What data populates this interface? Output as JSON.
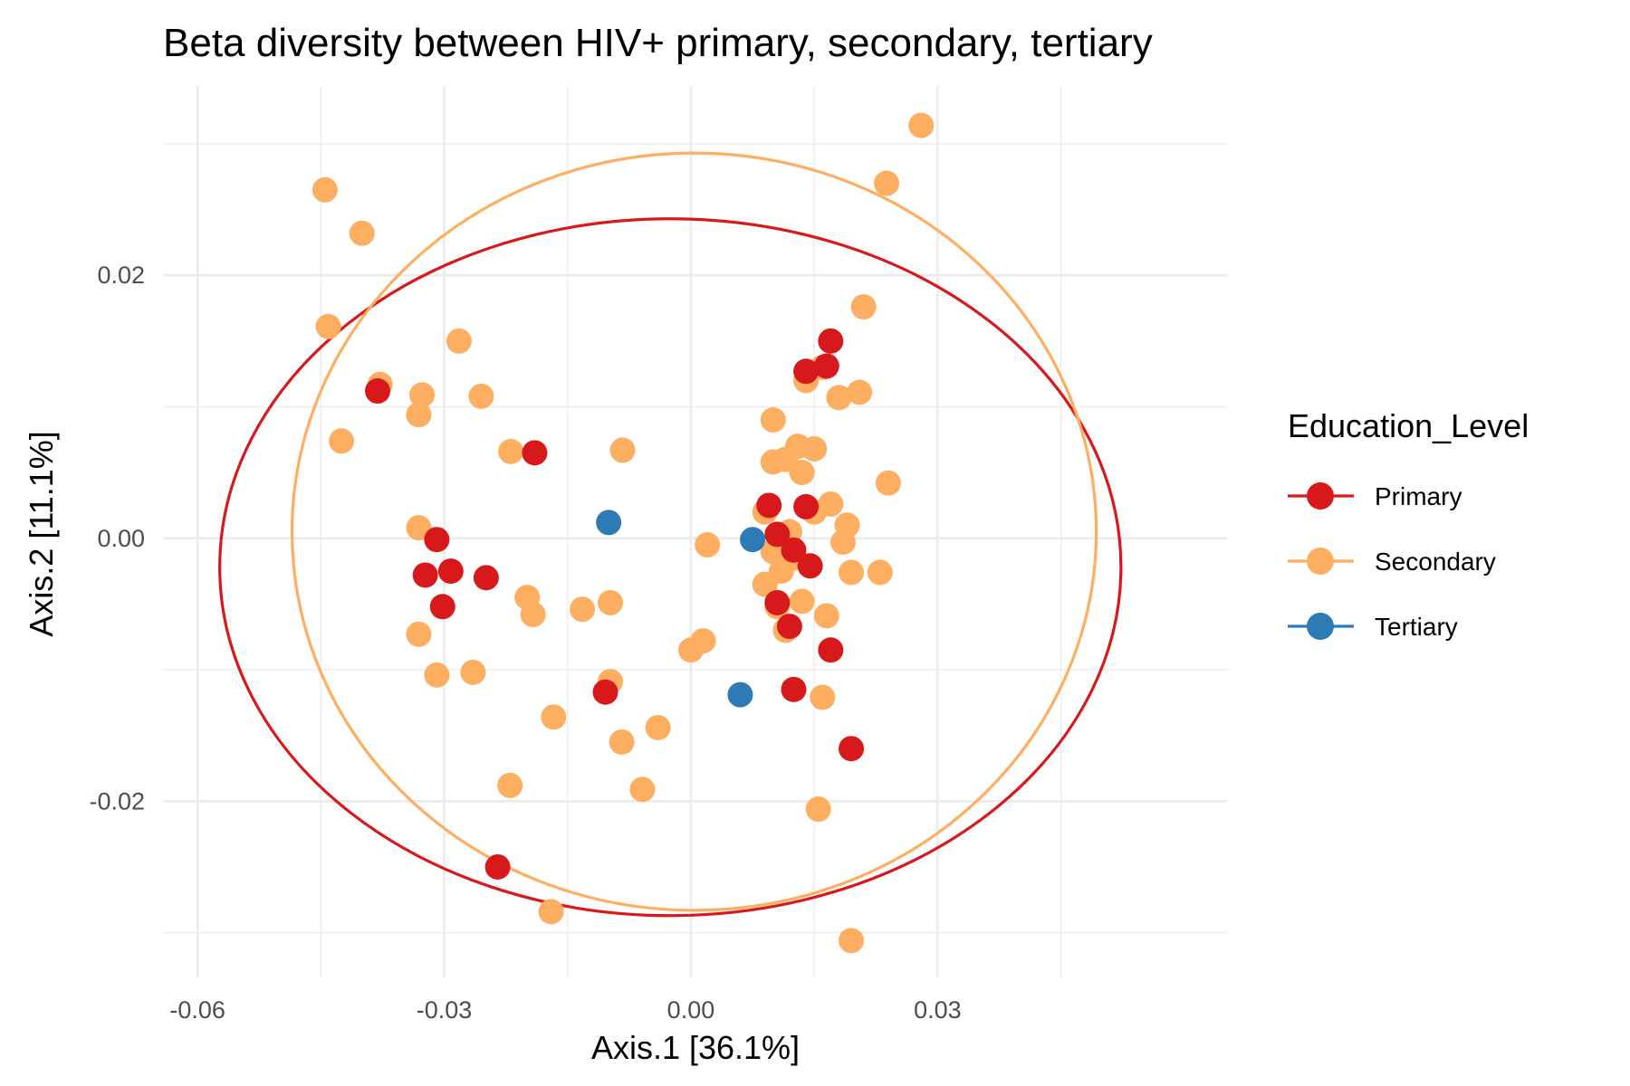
{
  "chart_data": {
    "type": "scatter",
    "title": "Beta diversity between HIV+ primary, secondary, tertiary",
    "xlabel": "Axis.1   [36.1%]",
    "ylabel": "Axis.2   [11.1%]",
    "xlim": [
      -0.0642,
      0.0652
    ],
    "ylim": [
      -0.0334,
      0.0344
    ],
    "x_major_ticks": [
      -0.06,
      -0.03,
      0.0,
      0.03
    ],
    "x_tick_labels": [
      "-0.06",
      "-0.03",
      "0.00",
      "0.03"
    ],
    "x_minor_ticks": [
      -0.045,
      -0.015,
      0.015,
      0.045
    ],
    "y_major_ticks": [
      -0.02,
      0.0,
      0.02
    ],
    "y_tick_labels": [
      "-0.02",
      "0.00",
      "0.02"
    ],
    "y_minor_ticks": [
      -0.03,
      -0.01,
      0.01,
      0.03
    ],
    "grid": true,
    "legend": {
      "title": "Education_Level",
      "placement": "right"
    },
    "ellipses": [
      {
        "series": "Primary",
        "center": [
          -0.0025,
          -0.0022
        ],
        "rx": 0.0548,
        "ry": 0.0265
      },
      {
        "series": "Secondary",
        "center": [
          0.0004,
          0.0005
        ],
        "rx": 0.0489,
        "ry": 0.0288
      }
    ],
    "series": [
      {
        "name": "Secondary",
        "color": "#fdae61",
        "points": [
          [
            -0.0445,
            0.0265
          ],
          [
            -0.04,
            0.0232
          ],
          [
            -0.0441,
            0.0161
          ],
          [
            -0.0425,
            0.0074
          ],
          [
            -0.0378,
            0.0117
          ],
          [
            -0.0327,
            0.0109
          ],
          [
            -0.0331,
            0.0094
          ],
          [
            -0.0282,
            0.015
          ],
          [
            -0.0255,
            0.0108
          ],
          [
            -0.0219,
            0.0066
          ],
          [
            -0.0331,
            0.0008
          ],
          [
            -0.0331,
            -0.0073
          ],
          [
            -0.0309,
            -0.0104
          ],
          [
            -0.0265,
            -0.0102
          ],
          [
            -0.0199,
            -0.0045
          ],
          [
            -0.0192,
            -0.0058
          ],
          [
            -0.0167,
            -0.0136
          ],
          [
            -0.022,
            -0.0188
          ],
          [
            -0.0132,
            -0.0054
          ],
          [
            -0.0098,
            -0.0049
          ],
          [
            -0.0083,
            0.0067
          ],
          [
            -0.0098,
            -0.0109
          ],
          [
            -0.0084,
            -0.0155
          ],
          [
            -0.0059,
            -0.0191
          ],
          [
            -0.004,
            -0.0144
          ],
          [
            -0.017,
            -0.0284
          ],
          [
            0.0,
            -0.0085
          ],
          [
            0.0015,
            -0.0078
          ],
          [
            0.002,
            -0.0005
          ],
          [
            0.01,
            0.009
          ],
          [
            0.0115,
            0.006
          ],
          [
            0.013,
            0.007
          ],
          [
            0.0135,
            0.005
          ],
          [
            0.015,
            0.0068
          ],
          [
            0.014,
            0.012
          ],
          [
            0.016,
            0.013
          ],
          [
            0.018,
            0.0107
          ],
          [
            0.0205,
            0.0111
          ],
          [
            0.021,
            0.0176
          ],
          [
            0.024,
            0.0042
          ],
          [
            0.017,
            0.0026
          ],
          [
            0.019,
            0.001
          ],
          [
            0.0185,
            -0.0003
          ],
          [
            0.0195,
            -0.0026
          ],
          [
            0.023,
            -0.0026
          ],
          [
            0.0165,
            -0.0059
          ],
          [
            0.016,
            -0.0121
          ],
          [
            0.0155,
            -0.0206
          ],
          [
            0.0195,
            -0.0306
          ],
          [
            0.0238,
            0.027
          ],
          [
            0.028,
            0.0314
          ],
          [
            0.009,
            0.002
          ],
          [
            0.01,
            -0.001
          ],
          [
            0.011,
            -0.0025
          ],
          [
            0.009,
            -0.0035
          ],
          [
            0.0105,
            -0.0052
          ],
          [
            0.0115,
            -0.007
          ],
          [
            0.0135,
            -0.0048
          ],
          [
            0.012,
            0.0005
          ],
          [
            0.015,
            0.002
          ],
          [
            0.0125,
            -0.0015
          ],
          [
            0.01,
            0.0058
          ]
        ]
      },
      {
        "name": "Primary",
        "color": "#d7191c",
        "points": [
          [
            -0.0381,
            0.0112
          ],
          [
            -0.019,
            0.0065
          ],
          [
            -0.0309,
            -0.0001
          ],
          [
            -0.0323,
            -0.0028
          ],
          [
            -0.0292,
            -0.0025
          ],
          [
            -0.0302,
            -0.0052
          ],
          [
            -0.0249,
            -0.003
          ],
          [
            -0.0104,
            -0.0117
          ],
          [
            -0.0235,
            -0.025
          ],
          [
            0.014,
            0.0127
          ],
          [
            0.0165,
            0.0131
          ],
          [
            0.017,
            0.015
          ],
          [
            0.0095,
            0.0025
          ],
          [
            0.014,
            0.0024
          ],
          [
            0.0105,
            0.0003
          ],
          [
            0.0125,
            -0.0009
          ],
          [
            0.0145,
            -0.0021
          ],
          [
            0.0105,
            -0.0049
          ],
          [
            0.012,
            -0.0067
          ],
          [
            0.017,
            -0.0085
          ],
          [
            0.0125,
            -0.0115
          ],
          [
            0.0195,
            -0.016
          ]
        ]
      },
      {
        "name": "Tertiary",
        "color": "#2c7bb6",
        "points": [
          [
            -0.01,
            0.0012
          ],
          [
            0.0075,
            -0.0001
          ],
          [
            0.006,
            -0.0119
          ]
        ]
      }
    ]
  }
}
